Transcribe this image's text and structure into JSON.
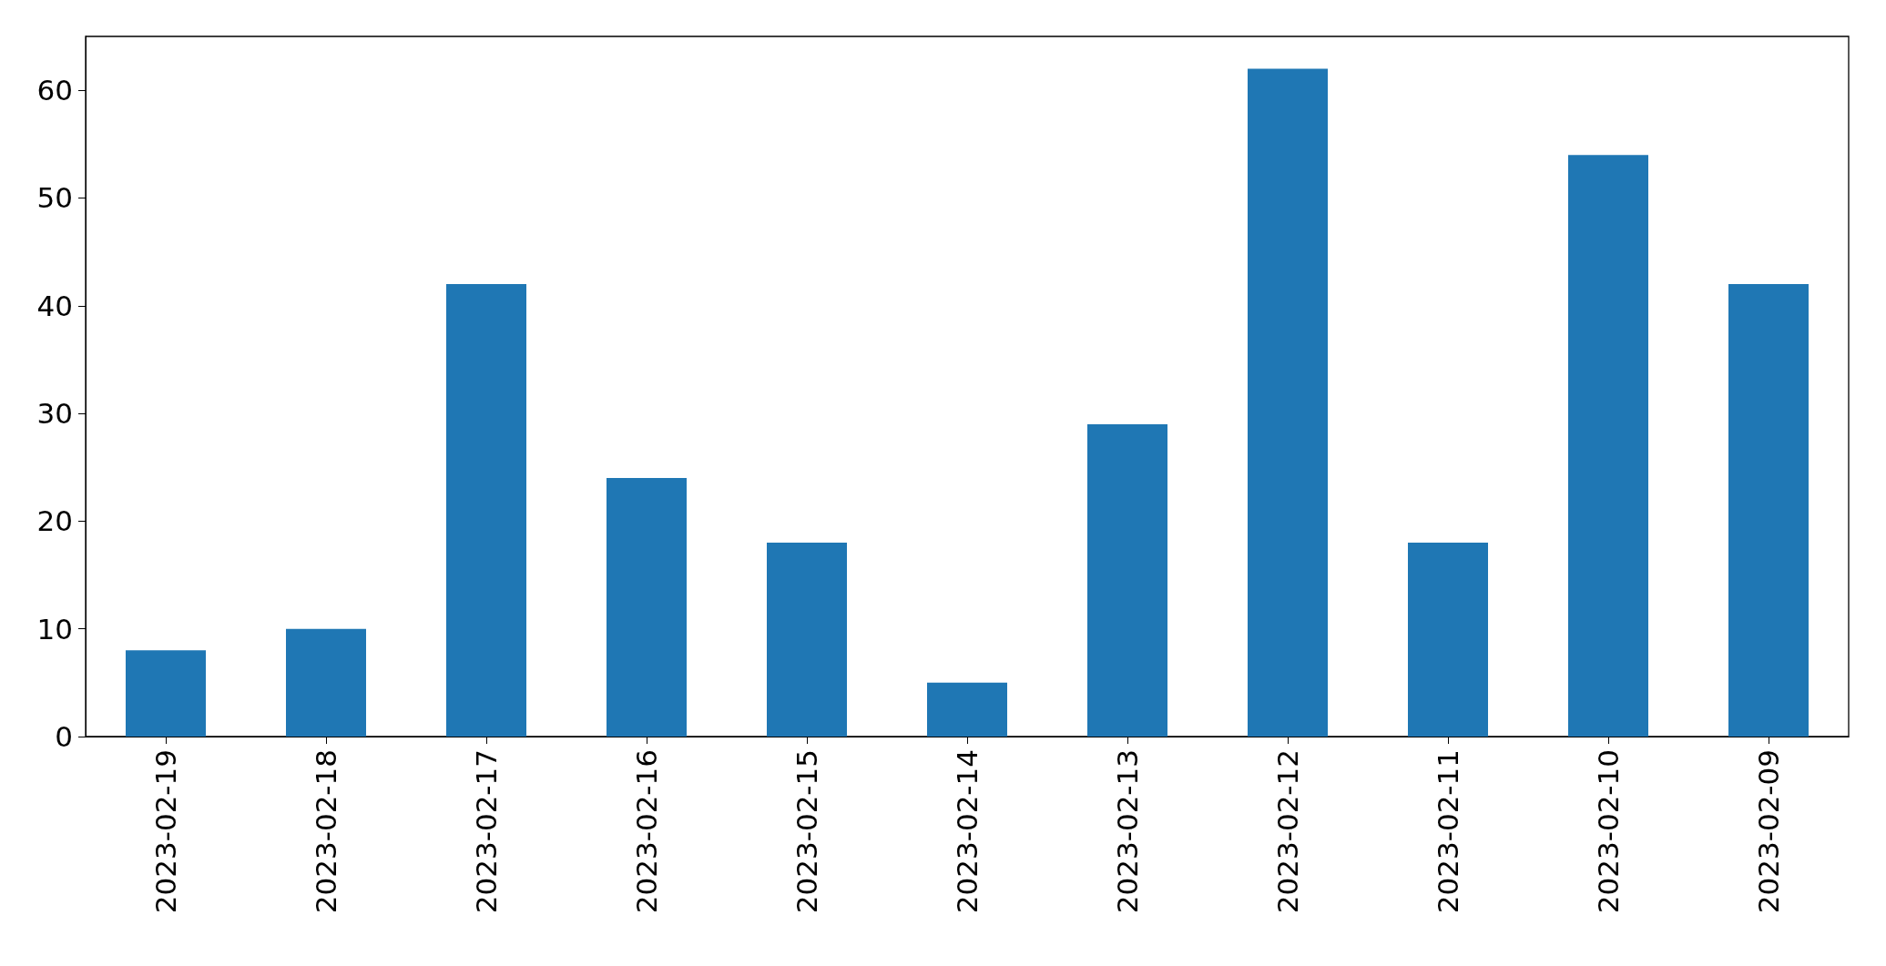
{
  "chart_data": {
    "type": "bar",
    "categories": [
      "2023-02-19",
      "2023-02-18",
      "2023-02-17",
      "2023-02-16",
      "2023-02-15",
      "2023-02-14",
      "2023-02-13",
      "2023-02-12",
      "2023-02-11",
      "2023-02-10",
      "2023-02-09"
    ],
    "values": [
      8,
      10,
      42,
      24,
      18,
      5,
      29,
      62,
      18,
      54,
      42
    ],
    "color": "#1f77b4",
    "ylim": [
      0,
      65
    ],
    "yticks": [
      0,
      10,
      20,
      30,
      40,
      50,
      60
    ],
    "grid": false
  }
}
